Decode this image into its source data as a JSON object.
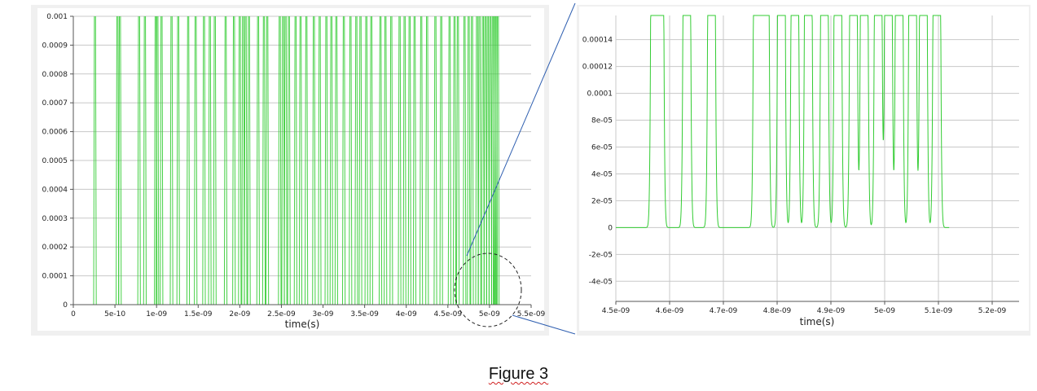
{
  "caption": "Figure 3",
  "colors": {
    "signal": "#33cc33",
    "grid": "#c8c8c8",
    "panel_bg": "#f0f0f0",
    "zoom_line": "#2f5fb0"
  },
  "chart_data": [
    {
      "type": "line",
      "xlabel": "time(s)",
      "ylabel": "",
      "xlim": [
        0,
        5.5e-09
      ],
      "ylim": [
        0,
        0.001
      ],
      "x_ticks": [
        "0",
        "5e-10",
        "1e-09",
        "1.5e-09",
        "2e-09",
        "2.5e-09",
        "3e-09",
        "3.5e-09",
        "4e-09",
        "4.5e-09",
        "5e-09",
        "5.5e-09"
      ],
      "y_ticks": [
        "0",
        "0.0001",
        "0.0002",
        "0.0003",
        "0.0004",
        "0.0005",
        "0.0006",
        "0.0007",
        "0.0008",
        "0.0009",
        "0.001"
      ],
      "series": [
        {
          "peak": 0.001,
          "pulse_times": [
            2.6e-10,
            5.3e-10,
            5.6e-10,
            7.9e-10,
            8.6e-10,
            9.9e-10,
            1.01e-09,
            1.06e-09,
            1.18e-09,
            1.26e-09,
            1.38e-09,
            1.47e-09,
            1.57e-09,
            1.64e-09,
            1.7e-09,
            1.83e-09,
            1.93e-09,
            2e-09,
            2.04e-09,
            2.07e-09,
            2.11e-09,
            2.22e-09,
            2.29e-09,
            2.33e-09,
            2.48e-09,
            2.52e-09,
            2.55e-09,
            2.59e-09,
            2.67e-09,
            2.73e-09,
            2.8e-09,
            2.89e-09,
            2.96e-09,
            3.04e-09,
            3.1e-09,
            3.16e-09,
            3.25e-09,
            3.33e-09,
            3.4e-09,
            3.45e-09,
            3.52e-09,
            3.58e-09,
            3.69e-09,
            3.75e-09,
            3.82e-09,
            3.92e-09,
            3.98e-09,
            4.04e-09,
            4.1e-09,
            4.18e-09,
            4.25e-09,
            4.35e-09,
            4.42e-09,
            4.52e-09,
            4.58e-09,
            4.62e-09,
            4.7e-09,
            4.75e-09,
            4.79e-09,
            4.85e-09,
            4.88e-09,
            4.92e-09,
            4.95e-09,
            4.98e-09,
            5.01e-09,
            5.04e-09,
            5.06e-09,
            5.08e-09,
            5.1e-09
          ]
        }
      ]
    },
    {
      "type": "line",
      "xlabel": "time(s)",
      "ylabel": "",
      "xlim": [
        4.5e-09,
        5.25e-09
      ],
      "ylim": [
        -5.5e-05,
        0.000158
      ],
      "x_ticks": [
        {
          "v": 4.5e-09,
          "label": "4.5e-09"
        },
        {
          "v": 4.6e-09,
          "label": "4.6e-09"
        },
        {
          "v": 4.7e-09,
          "label": "4.7e-09"
        },
        {
          "v": 4.8e-09,
          "label": "4.8e-09"
        },
        {
          "v": 4.9e-09,
          "label": "4.9e-09"
        },
        {
          "v": 5e-09,
          "label": "5e-09"
        },
        {
          "v": 5.1e-09,
          "label": "5.1e-09"
        },
        {
          "v": 5.2e-09,
          "label": "5.2e-09"
        }
      ],
      "y_ticks": [
        {
          "v": -4e-05,
          "label": "-4e-05"
        },
        {
          "v": -2e-05,
          "label": "-2e-05"
        },
        {
          "v": 0,
          "label": "0"
        },
        {
          "v": 2e-05,
          "label": "2e-05"
        },
        {
          "v": 4e-05,
          "label": "4e-05"
        },
        {
          "v": 6e-05,
          "label": "6e-05"
        },
        {
          "v": 8e-05,
          "label": "8e-05"
        },
        {
          "v": 0.0001,
          "label": "0.0001"
        },
        {
          "v": 0.00012,
          "label": "0.00012"
        },
        {
          "v": 0.00014,
          "label": "0.00014"
        }
      ],
      "series": [
        {
          "x_start": 4.5e-09,
          "x_end": 5.12e-09,
          "pulse_times": [
            4.572e-09,
            4.582e-09,
            4.632e-09,
            4.678e-09,
            4.763e-09,
            4.778e-09,
            4.808e-09,
            4.833e-09,
            4.858e-09,
            4.888e-09,
            4.913e-09,
            4.942e-09,
            4.962e-09,
            4.988e-09,
            5.007e-09,
            5.027e-09,
            5.052e-09,
            5.072e-09,
            5.097e-09
          ]
        }
      ]
    }
  ]
}
